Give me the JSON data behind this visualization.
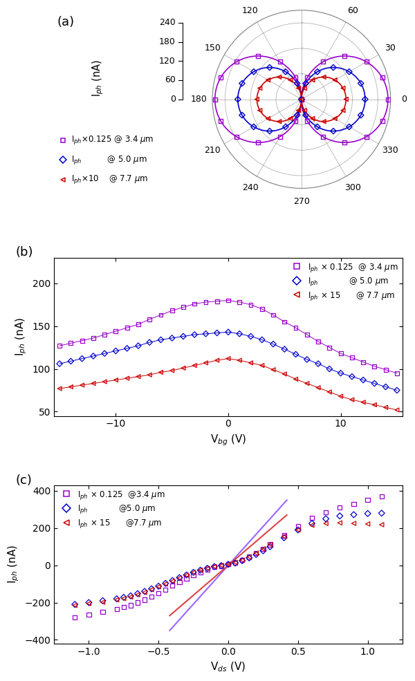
{
  "panel_a": {
    "colors": [
      "#9900CC",
      "#0000CC",
      "#CC0000"
    ],
    "markers": [
      "s",
      "D",
      "<"
    ],
    "r_max": 70,
    "rticks": [
      0,
      20,
      40,
      60
    ],
    "r_amplitudes": [
      68,
      50,
      35
    ],
    "labels_a": [
      "I$_{ph}$$\\times$0.125 @ 3.4 $\\mu$m",
      "I$_{ph}$          @ 5.0 $\\mu$m",
      "I$_{ph}$$\\times$10    @ 7.7 $\\mu$m"
    ]
  },
  "polar_ylabel_ticks": [
    "0",
    "60",
    "120",
    "180",
    "240"
  ],
  "panel_b": {
    "xlabel": "V$_{bg}$ (V)",
    "ylabel": "I$_{ph}$ (nA)",
    "xlim": [
      -15.5,
      15.5
    ],
    "ylim": [
      45,
      230
    ],
    "yticks": [
      50,
      100,
      150,
      200
    ],
    "xticks": [
      -10,
      0,
      10
    ],
    "colors": [
      "#9900CC",
      "#0000CC",
      "#CC0000"
    ],
    "markers": [
      "s",
      "D",
      "<"
    ],
    "labels": [
      "I$_{ph}$ $\\times$ 0.125  @ 3.4 $\\mu$m",
      "I$_{ph}$            @ 5.0 $\\mu$m",
      "I$_{ph}$ $\\times$ 15      @ 7.7 $\\mu$m"
    ],
    "series": [
      {
        "x": [
          -15,
          -14,
          -13,
          -12,
          -11,
          -10,
          -9,
          -8,
          -7,
          -6,
          -5,
          -4,
          -3,
          -2,
          -1,
          0,
          1,
          2,
          3,
          4,
          5,
          6,
          7,
          8,
          9,
          10,
          11,
          12,
          13,
          14,
          15
        ],
        "y": [
          127,
          130,
          133,
          136,
          140,
          144,
          148,
          152,
          158,
          163,
          168,
          172,
          176,
          178,
          179,
          180,
          178,
          175,
          170,
          163,
          155,
          148,
          140,
          132,
          125,
          118,
          113,
          108,
          103,
          99,
          95
        ]
      },
      {
        "x": [
          -15,
          -14,
          -13,
          -12,
          -11,
          -10,
          -9,
          -8,
          -7,
          -6,
          -5,
          -4,
          -3,
          -2,
          -1,
          0,
          1,
          2,
          3,
          4,
          5,
          6,
          7,
          8,
          9,
          10,
          11,
          12,
          13,
          14,
          15
        ],
        "y": [
          106,
          109,
          112,
          115,
          118,
          121,
          124,
          127,
          131,
          134,
          136,
          138,
          140,
          141,
          142,
          143,
          141,
          138,
          134,
          129,
          123,
          117,
          111,
          106,
          100,
          95,
          91,
          87,
          83,
          79,
          75
        ]
      },
      {
        "x": [
          -15,
          -14,
          -13,
          -12,
          -11,
          -10,
          -9,
          -8,
          -7,
          -6,
          -5,
          -4,
          -3,
          -2,
          -1,
          0,
          1,
          2,
          3,
          4,
          5,
          6,
          7,
          8,
          9,
          10,
          11,
          12,
          13,
          14,
          15
        ],
        "y": [
          77,
          79,
          81,
          83,
          85,
          87,
          89,
          91,
          93,
          96,
          98,
          101,
          104,
          107,
          110,
          112,
          110,
          107,
          104,
          99,
          94,
          88,
          83,
          78,
          73,
          68,
          64,
          61,
          58,
          55,
          52
        ]
      }
    ]
  },
  "panel_c": {
    "xlabel": "V$_{ds}$ (V)",
    "ylabel": "I$_{ph}$ (nA)",
    "xlim": [
      -1.25,
      1.25
    ],
    "ylim": [
      -420,
      430
    ],
    "yticks": [
      -400,
      -200,
      0,
      200,
      400
    ],
    "xticks": [
      -1.0,
      -0.5,
      0.0,
      0.5,
      1.0
    ],
    "colors": [
      "#9900CC",
      "#0000CC",
      "#CC0000"
    ],
    "markers": [
      "s",
      "D",
      "<"
    ],
    "labels": [
      "I$_{ph}$ $\\times$ 0.125  @3.4 $\\mu$m",
      "I$_{ph}$            @5.0 $\\mu$m",
      "I$_{ph}$ $\\times$ 15      @7.7 $\\mu$m"
    ],
    "fit_lines": [
      {
        "color": "#9966FF",
        "x1": -0.42,
        "y1": -350,
        "x2": 0.42,
        "y2": 350
      },
      {
        "color": "#DD4444",
        "x1": -0.42,
        "y1": -270,
        "x2": 0.42,
        "y2": 270
      }
    ],
    "series": [
      {
        "x": [
          -1.1,
          -1.0,
          -0.9,
          -0.8,
          -0.75,
          -0.7,
          -0.65,
          -0.6,
          -0.55,
          -0.5,
          -0.45,
          -0.4,
          -0.35,
          -0.3,
          -0.25,
          -0.2,
          -0.15,
          -0.1,
          -0.05,
          0.0,
          0.05,
          0.1,
          0.15,
          0.2,
          0.25,
          0.3,
          0.4,
          0.5,
          0.6,
          0.7,
          0.8,
          0.9,
          1.0,
          1.1
        ],
        "y": [
          -280,
          -265,
          -250,
          -235,
          -225,
          -215,
          -200,
          -185,
          -168,
          -150,
          -130,
          -110,
          -90,
          -70,
          -53,
          -38,
          -22,
          -10,
          -3,
          5,
          15,
          28,
          45,
          65,
          88,
          112,
          160,
          210,
          255,
          285,
          310,
          330,
          350,
          370
        ]
      },
      {
        "x": [
          -1.1,
          -1.0,
          -0.9,
          -0.8,
          -0.75,
          -0.7,
          -0.65,
          -0.6,
          -0.55,
          -0.5,
          -0.45,
          -0.4,
          -0.35,
          -0.3,
          -0.25,
          -0.2,
          -0.15,
          -0.1,
          -0.05,
          0.0,
          0.05,
          0.1,
          0.15,
          0.2,
          0.25,
          0.3,
          0.4,
          0.5,
          0.6,
          0.7,
          0.8,
          0.9,
          1.0,
          1.1
        ],
        "y": [
          -210,
          -200,
          -190,
          -180,
          -172,
          -164,
          -152,
          -140,
          -126,
          -112,
          -97,
          -82,
          -66,
          -52,
          -38,
          -26,
          -16,
          -7,
          -2,
          5,
          12,
          25,
          40,
          58,
          78,
          100,
          148,
          190,
          225,
          250,
          265,
          272,
          278,
          280
        ]
      },
      {
        "x": [
          -1.1,
          -1.0,
          -0.9,
          -0.8,
          -0.75,
          -0.7,
          -0.65,
          -0.6,
          -0.55,
          -0.5,
          -0.45,
          -0.4,
          -0.35,
          -0.3,
          -0.25,
          -0.2,
          -0.15,
          -0.1,
          -0.05,
          0.0,
          0.05,
          0.1,
          0.15,
          0.2,
          0.25,
          0.3,
          0.4,
          0.5,
          0.6,
          0.7,
          0.8,
          0.9,
          1.0,
          1.1
        ],
        "y": [
          -215,
          -205,
          -198,
          -185,
          -178,
          -170,
          -158,
          -145,
          -130,
          -115,
          -100,
          -85,
          -68,
          -53,
          -38,
          -26,
          -16,
          -7,
          -1,
          6,
          15,
          28,
          45,
          65,
          88,
          112,
          155,
          190,
          215,
          225,
          228,
          225,
          222,
          218
        ]
      }
    ]
  }
}
